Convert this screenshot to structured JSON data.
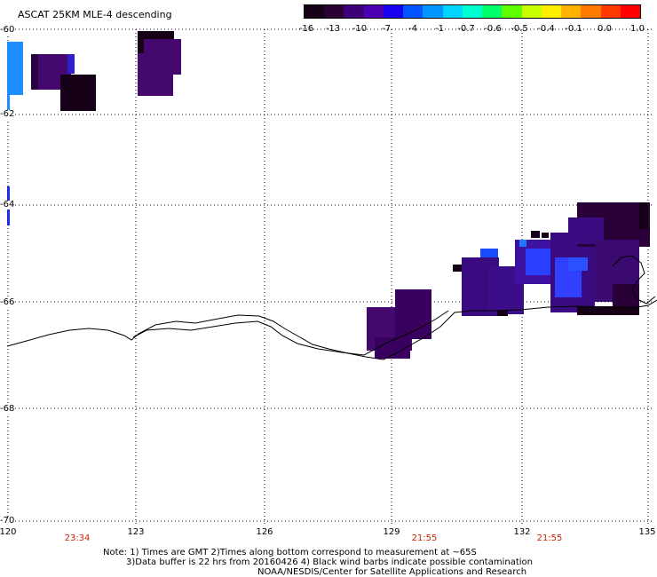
{
  "title": "ASCAT 25KM MLE-4 descending",
  "colorbar": {
    "labels": [
      "-16",
      "-13",
      "-10",
      "-7",
      "-4",
      "-1",
      "-0.7",
      "-0.6",
      "-0.5",
      "-0.4",
      "-0.1",
      "0.0",
      "1.0"
    ],
    "colors": [
      "#150015",
      "#2a0035",
      "#3d0078",
      "#4b00b4",
      "#1a00f0",
      "#0055ff",
      "#0095ff",
      "#00d4ff",
      "#00ffd0",
      "#00ff6a",
      "#5fff00",
      "#c8ff00",
      "#ffee00",
      "#ffb300",
      "#ff7a00",
      "#ff3a00",
      "#ff0000"
    ]
  },
  "map": {
    "lon_labels": [
      "120",
      "123",
      "126",
      "129",
      "132",
      "135"
    ],
    "lat_labels": [
      "-60",
      "-62",
      "-64",
      "-66",
      "-68",
      "-70"
    ],
    "time_labels": [
      "23:34",
      "21:55",
      "21:55"
    ]
  },
  "notes": [
    "Note: 1) Times are GMT 2)Times along bottom correspond to measurement at ~65S",
    "3)Data buffer is 22 hrs from 20160426 4) Black wind barbs indicate possible contamination",
    "NOAA/NESDIS/Center for Satellite Applications and Research"
  ]
}
